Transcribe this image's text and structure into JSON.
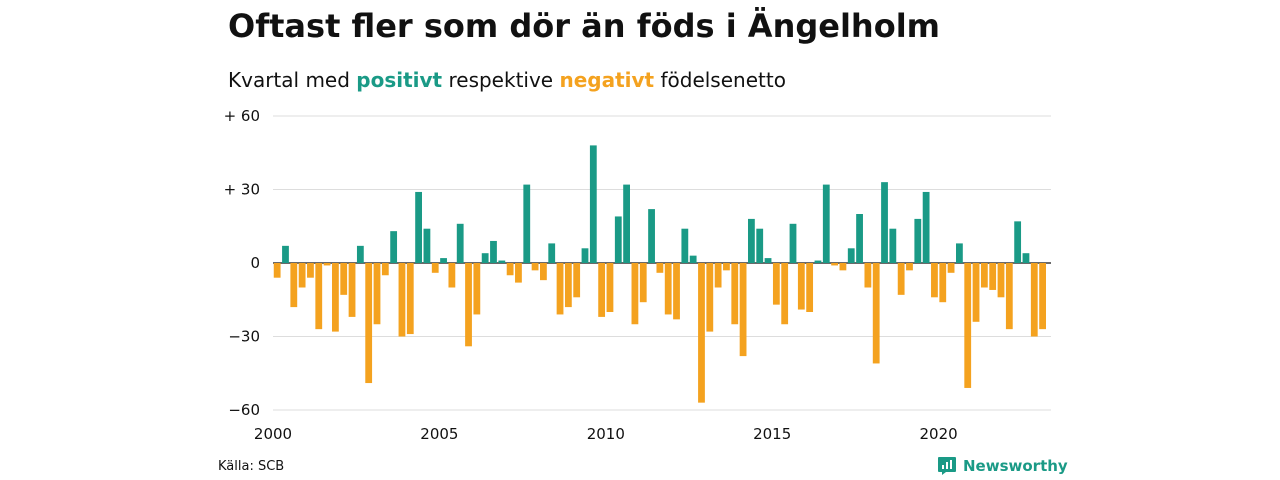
{
  "title": "Oftast fler som dör än föds i Ängelholm",
  "subtitle": {
    "prefix": "Kvartal med ",
    "positive": "positivt",
    "middle": " respektive ",
    "negative": "negativt",
    "suffix": " födelsenetto"
  },
  "source": "Källa: SCB",
  "brand": "Newsworthy",
  "colors": {
    "positive": "#1a9a86",
    "negative": "#f4a21f",
    "grid": "#dddddd",
    "axis": "#111111"
  },
  "chart_data": {
    "type": "bar",
    "title": "Oftast fler som dör än föds i Ängelholm",
    "subtitle": "Kvartal med positivt respektive negativt födelsenetto",
    "xlabel": "",
    "ylabel": "",
    "ylim": [
      -60,
      60
    ],
    "y_ticks": [
      60,
      30,
      0,
      -30,
      -60
    ],
    "y_tick_labels": [
      "+ 60",
      "+ 30",
      "0",
      "−30",
      "−60"
    ],
    "x_tick_labels": [
      "2000",
      "2005",
      "2010",
      "2015",
      "2020"
    ],
    "x_tick_years": [
      2000,
      2005,
      2010,
      2015,
      2020
    ],
    "first_quarter": "2000 Q1",
    "values": [
      -6,
      7,
      -18,
      -10,
      -6,
      -27,
      -1,
      -28,
      -13,
      -22,
      7,
      -49,
      -25,
      -5,
      13,
      -30,
      -29,
      29,
      14,
      -4,
      2,
      -10,
      16,
      -34,
      -21,
      4,
      9,
      1,
      -5,
      -8,
      32,
      -3,
      -7,
      8,
      -21,
      -18,
      -14,
      6,
      48,
      -22,
      -20,
      19,
      32,
      -25,
      -16,
      22,
      -4,
      -21,
      -23,
      14,
      3,
      -57,
      -28,
      -10,
      -3,
      -25,
      -38,
      18,
      14,
      2,
      -17,
      -25,
      16,
      -19,
      -20,
      1,
      32,
      -1,
      -3,
      6,
      20,
      -10,
      -41,
      33,
      14,
      -13,
      -3,
      18,
      29,
      -14,
      -16,
      -4,
      8,
      -51,
      -24,
      -10,
      -11,
      -14,
      -27,
      17,
      4,
      -30,
      -27
    ]
  }
}
